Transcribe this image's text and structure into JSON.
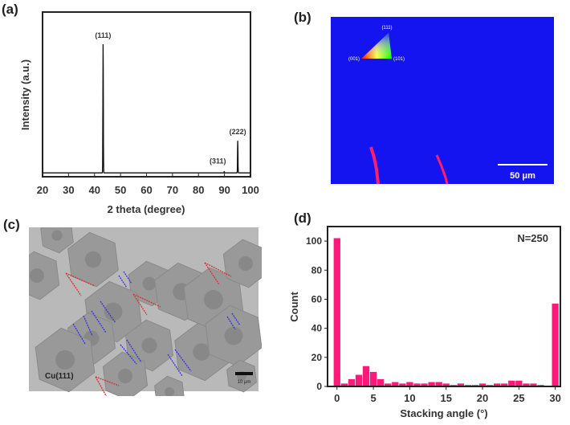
{
  "panels": {
    "a": "(a)",
    "b": "(b)",
    "c": "(c)",
    "d": "(d)"
  },
  "chart_data": [
    {
      "type": "line",
      "panel": "(a)",
      "xlabel": "2 theta (degree)",
      "ylabel": "Intensity (a.u.)",
      "xlim": [
        20,
        100
      ],
      "xticks": [
        20,
        30,
        40,
        50,
        60,
        70,
        80,
        90,
        100
      ],
      "ylim": [
        -3,
        125
      ],
      "yticks_shown": false,
      "grid": false,
      "color": "#111111",
      "peaks": [
        {
          "x": 43.3,
          "y": 100,
          "label": "(111)"
        },
        {
          "x": 89.9,
          "y": 1,
          "label": "(311)"
        },
        {
          "x": 95.1,
          "y": 25,
          "label": "(222)"
        }
      ]
    },
    {
      "type": "image",
      "panel": "(b)",
      "background_color": "#1414f0",
      "feature_color": "#ff1f6a",
      "legend_triangle_labels": [
        "(111)",
        "(001)",
        "(101)"
      ],
      "scalebar": "50 μm"
    },
    {
      "type": "image",
      "panel": "(c)",
      "annotation": "Cu(111)",
      "scalebar": "10 μm",
      "line_colors": {
        "red": "#d0393a",
        "blue": "#3a3ad8"
      }
    },
    {
      "type": "bar",
      "panel": "(d)",
      "xlabel": "Stacking angle (°)",
      "ylabel": "Count",
      "annotation": "N=250",
      "xlim": [
        -1.3,
        30.7
      ],
      "ylim": [
        0,
        110
      ],
      "xticks": [
        0,
        5,
        10,
        15,
        20,
        25,
        30
      ],
      "yticks": [
        0,
        20,
        40,
        60,
        80,
        100
      ],
      "grid": false,
      "color": "#ff1a7a",
      "x": [
        0,
        1,
        2,
        3,
        4,
        5,
        6,
        7,
        8,
        9,
        10,
        11,
        12,
        13,
        14,
        15,
        16,
        17,
        18,
        19,
        20,
        21,
        22,
        23,
        24,
        25,
        26,
        27,
        28,
        29,
        30
      ],
      "values": [
        102,
        2,
        5,
        8,
        14,
        10,
        5,
        2,
        3,
        2,
        3,
        2,
        2,
        3,
        3,
        2,
        1,
        2,
        1,
        1,
        2,
        1,
        2,
        2,
        4,
        4,
        2,
        2,
        1,
        0,
        57
      ]
    }
  ]
}
